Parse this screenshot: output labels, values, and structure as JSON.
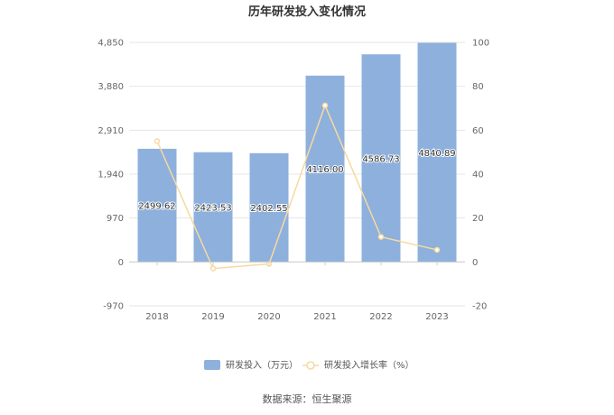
{
  "chart_data": {
    "type": "bar",
    "title": "历年研发投入变化情况",
    "categories": [
      "2018",
      "2019",
      "2020",
      "2021",
      "2022",
      "2023"
    ],
    "series": [
      {
        "name": "研发投入（万元）",
        "type": "bar",
        "axis": "left",
        "color": "#8eb0dd",
        "values": [
          2499.62,
          2423.53,
          2402.55,
          4116.0,
          4586.73,
          4840.89
        ],
        "labels": [
          "2499.62",
          "2423.53",
          "2402.55",
          "4116.00",
          "4586.73",
          "4840.89"
        ]
      },
      {
        "name": "研发投入增长率（%）",
        "type": "line",
        "axis": "right",
        "color": "#f7d9a0",
        "values": [
          55.0,
          -3.0,
          -0.9,
          71.3,
          11.4,
          5.5
        ]
      }
    ],
    "y_left": {
      "ticks": [
        "4,850",
        "3,880",
        "2,910",
        "1,940",
        "970",
        "0",
        "-970"
      ],
      "min": -970,
      "max": 4850
    },
    "y_right": {
      "ticks": [
        "100",
        "80",
        "60",
        "40",
        "20",
        "0",
        "-20"
      ],
      "min": -20,
      "max": 100
    },
    "grid": true,
    "legend": "bottom"
  },
  "source": "数据来源：恒生聚源"
}
